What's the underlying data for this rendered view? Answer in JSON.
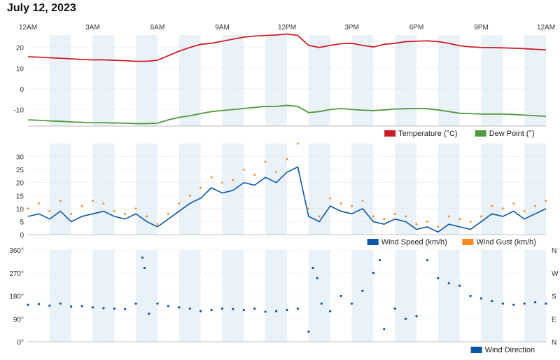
{
  "title": "July 12, 2023",
  "colors": {
    "band": "#eaf2f9",
    "temperature": "#cc1f27",
    "dew_point": "#4f9a3c",
    "wind_speed": "#0d55a6",
    "wind_gust": "#f58a1f",
    "wind_direction": "#0d55a6",
    "grid": "#dddddd"
  },
  "x_axis": {
    "labels": [
      "12AM",
      "3AM",
      "6AM",
      "9AM",
      "12PM",
      "3PM",
      "6PM",
      "9PM",
      "12AM"
    ],
    "range_hours": [
      0,
      24
    ]
  },
  "chart_data": [
    {
      "type": "line",
      "yticks": [
        "20",
        "10",
        "0",
        "-10"
      ],
      "ylim": [
        -18,
        26
      ],
      "grid": true,
      "legend": "bottom-right",
      "x": [
        0,
        0.5,
        1,
        1.5,
        2,
        2.5,
        3,
        3.5,
        4,
        4.5,
        5,
        5.5,
        6,
        6.5,
        7,
        7.5,
        8,
        8.5,
        9,
        9.5,
        10,
        10.5,
        11,
        11.5,
        12,
        12.5,
        13,
        13.5,
        14,
        14.5,
        15,
        15.5,
        16,
        16.5,
        17,
        17.5,
        18,
        18.5,
        19,
        19.5,
        20,
        20.5,
        21,
        21.5,
        22,
        22.5,
        23,
        23.5,
        24
      ],
      "series": [
        {
          "name": "Temperature (°C)",
          "values": [
            15.5,
            15.3,
            15,
            14.8,
            14.5,
            14.2,
            14,
            14,
            13.8,
            13.6,
            13.3,
            13.3,
            13.8,
            16,
            18.2,
            20,
            21.5,
            22,
            23,
            24,
            25,
            25.5,
            25.8,
            26,
            26.5,
            25.8,
            21,
            20,
            21,
            21.8,
            22,
            21,
            20.2,
            21.5,
            22,
            22.8,
            23,
            23.2,
            22.8,
            22,
            20.8,
            20.3,
            20,
            19.9,
            19.8,
            19.6,
            19.4,
            19.1,
            18.8
          ]
        },
        {
          "name": "Dew Point (°)",
          "values": [
            -15,
            -15.2,
            -15.5,
            -15.7,
            -16,
            -16.2,
            -16.4,
            -16.4,
            -16.5,
            -16.6,
            -16.8,
            -16.8,
            -16.6,
            -15,
            -13.8,
            -13,
            -12,
            -11,
            -10.5,
            -10,
            -9.5,
            -9,
            -8.5,
            -8.5,
            -8,
            -8.5,
            -11.5,
            -11,
            -10,
            -9.5,
            -10,
            -10.3,
            -10.5,
            -10.2,
            -9.8,
            -9.6,
            -9.5,
            -9.6,
            -10.2,
            -11,
            -11.8,
            -12,
            -12.2,
            -12.2,
            -12.2,
            -12.4,
            -12.7,
            -13,
            -13.3
          ]
        }
      ]
    },
    {
      "type": "line",
      "yticks": [
        "30",
        "25",
        "20",
        "15",
        "10",
        "5",
        "0"
      ],
      "ylim": [
        0,
        35
      ],
      "grid": true,
      "legend": "bottom-right",
      "x": [
        0,
        0.5,
        1,
        1.5,
        2,
        2.5,
        3,
        3.5,
        4,
        4.5,
        5,
        5.5,
        6,
        6.5,
        7,
        7.5,
        8,
        8.5,
        9,
        9.5,
        10,
        10.5,
        11,
        11.5,
        12,
        12.5,
        13,
        13.5,
        14,
        14.5,
        15,
        15.5,
        16,
        16.5,
        17,
        17.5,
        18,
        18.5,
        19,
        19.5,
        20,
        20.5,
        21,
        21.5,
        22,
        22.5,
        23,
        23.5,
        24
      ],
      "series": [
        {
          "name": "Wind Speed (km/h)",
          "values": [
            7,
            8,
            6,
            9,
            5,
            7,
            8,
            9,
            7,
            6,
            8,
            5,
            3,
            6,
            9,
            12,
            14,
            18,
            16,
            17,
            20,
            19,
            22,
            20,
            24,
            26,
            7,
            5,
            11,
            9,
            8,
            10,
            5,
            4,
            6,
            5,
            2,
            3,
            1,
            4,
            3,
            2,
            5,
            8,
            7,
            9,
            6,
            8,
            10
          ]
        },
        {
          "name": "Wind Gust (km/h)",
          "values": [
            10,
            12,
            9,
            13,
            8,
            11,
            13,
            12,
            9,
            8,
            10,
            7,
            4,
            8,
            12,
            15,
            18,
            22,
            20,
            21,
            25,
            23,
            28,
            24,
            29,
            35,
            10,
            7,
            14,
            12,
            11,
            13,
            7,
            6,
            8,
            7,
            4,
            5,
            3,
            7,
            6,
            5,
            7,
            11,
            10,
            12,
            9,
            11,
            13
          ]
        }
      ]
    },
    {
      "type": "scatter",
      "yticks": [
        "360°",
        "270°",
        "180°",
        "90°",
        "0°"
      ],
      "yticks_right": [
        "N",
        "W",
        "S",
        "E",
        "N"
      ],
      "ylim": [
        0,
        360
      ],
      "grid": true,
      "legend": "bottom-right",
      "series": [
        {
          "name": "Wind Direction",
          "x": [
            0,
            0.5,
            1,
            1.5,
            2,
            2.5,
            3,
            3.5,
            4,
            4.5,
            5,
            5.3,
            5.4,
            5.6,
            6,
            6.5,
            7,
            7.5,
            8,
            8.5,
            9,
            9.5,
            10,
            10.5,
            11,
            11.5,
            12,
            12.5,
            13,
            13.2,
            13.4,
            13.6,
            14,
            14.5,
            15,
            15.5,
            16,
            16.3,
            16.5,
            17,
            17.5,
            18,
            18.5,
            19,
            19.5,
            20,
            20.5,
            21,
            21.5,
            22,
            22.5,
            23,
            23.5,
            24
          ],
          "values": [
            145,
            148,
            142,
            150,
            138,
            140,
            135,
            132,
            130,
            128,
            150,
            330,
            290,
            110,
            150,
            140,
            135,
            130,
            120,
            125,
            130,
            128,
            125,
            130,
            118,
            120,
            125,
            130,
            40,
            290,
            250,
            150,
            120,
            180,
            150,
            200,
            270,
            320,
            50,
            130,
            90,
            100,
            320,
            250,
            230,
            220,
            180,
            170,
            160,
            150,
            145,
            150,
            155,
            150
          ]
        }
      ]
    }
  ]
}
